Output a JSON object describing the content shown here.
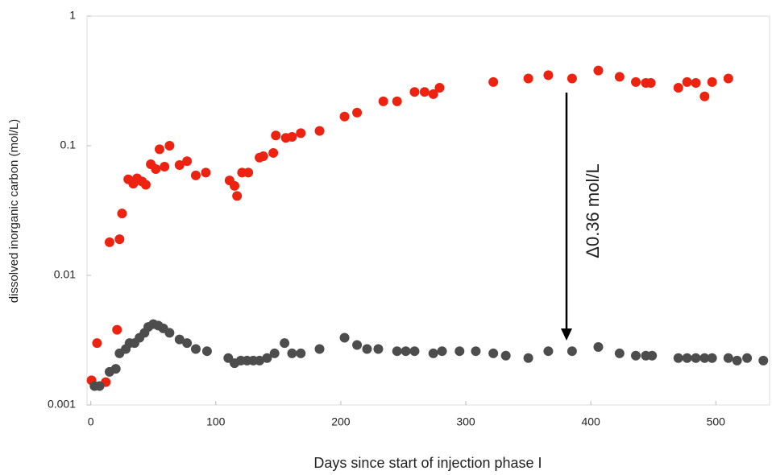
{
  "chart_data": {
    "type": "scatter",
    "x_label": "Days since start of injection phase I",
    "y_label": "dissolved inorganic carbon (mol/L)",
    "annotation": "Δ0.36 mol/L",
    "xlim": [
      -3,
      543
    ],
    "xticks": [
      0,
      100,
      200,
      300,
      400,
      500
    ],
    "ylim": [
      0.001,
      1
    ],
    "yticks": [
      0.001,
      0.01,
      0.1,
      1
    ],
    "log_y": true,
    "grid": false,
    "series": [
      {
        "color": "#ee2211",
        "x": [
          0.6,
          5,
          12,
          15,
          21,
          23,
          25,
          30,
          34,
          37,
          41,
          44,
          48,
          52,
          55,
          59,
          63,
          71,
          77,
          84,
          92,
          111,
          115,
          117,
          121,
          126,
          135,
          138,
          146,
          148,
          156,
          161,
          168,
          183,
          203,
          213,
          234,
          245,
          259,
          267,
          274,
          279,
          322,
          350,
          366,
          385,
          406,
          423,
          436,
          444,
          448,
          470,
          477,
          484,
          491,
          497,
          510
        ],
        "values": [
          0.00155,
          0.003,
          0.0015,
          0.018,
          0.0038,
          0.019,
          0.03,
          0.055,
          0.051,
          0.056,
          0.053,
          0.05,
          0.072,
          0.066,
          0.094,
          0.069,
          0.1,
          0.071,
          0.076,
          0.059,
          0.062,
          0.054,
          0.049,
          0.041,
          0.062,
          0.062,
          0.081,
          0.083,
          0.088,
          0.12,
          0.115,
          0.117,
          0.125,
          0.13,
          0.168,
          0.18,
          0.22,
          0.22,
          0.26,
          0.26,
          0.25,
          0.28,
          0.31,
          0.33,
          0.35,
          0.33,
          0.38,
          0.34,
          0.31,
          0.305,
          0.305,
          0.28,
          0.31,
          0.305,
          0.24,
          0.31,
          0.33
        ]
      },
      {
        "color": "#4d4d4d",
        "x": [
          3,
          7,
          15,
          20,
          23,
          28,
          31,
          35,
          39,
          43,
          46,
          50,
          54,
          58,
          63,
          71,
          77,
          84,
          93,
          110,
          115,
          120,
          125,
          130,
          135,
          141,
          147,
          155,
          161,
          168,
          183,
          203,
          213,
          221,
          230,
          245,
          252,
          259,
          274,
          281,
          295,
          308,
          322,
          332,
          350,
          366,
          385,
          406,
          423,
          436,
          444,
          449,
          470,
          477,
          484,
          491,
          497,
          510,
          517,
          525,
          538
        ],
        "values": [
          0.0014,
          0.0014,
          0.0018,
          0.0019,
          0.0025,
          0.0027,
          0.003,
          0.003,
          0.0033,
          0.0036,
          0.004,
          0.0042,
          0.0041,
          0.0039,
          0.0036,
          0.0032,
          0.003,
          0.0027,
          0.0026,
          0.0023,
          0.0021,
          0.0022,
          0.0022,
          0.0022,
          0.0022,
          0.0023,
          0.0025,
          0.003,
          0.0025,
          0.0025,
          0.0027,
          0.0033,
          0.0029,
          0.0027,
          0.0027,
          0.0026,
          0.0026,
          0.0026,
          0.0025,
          0.0026,
          0.0026,
          0.0026,
          0.0025,
          0.0024,
          0.0023,
          0.0026,
          0.0026,
          0.0028,
          0.0025,
          0.0024,
          0.0024,
          0.0024,
          0.0023,
          0.0023,
          0.0023,
          0.0023,
          0.0023,
          0.0023,
          0.0022,
          0.0023,
          0.0022
        ]
      }
    ]
  }
}
